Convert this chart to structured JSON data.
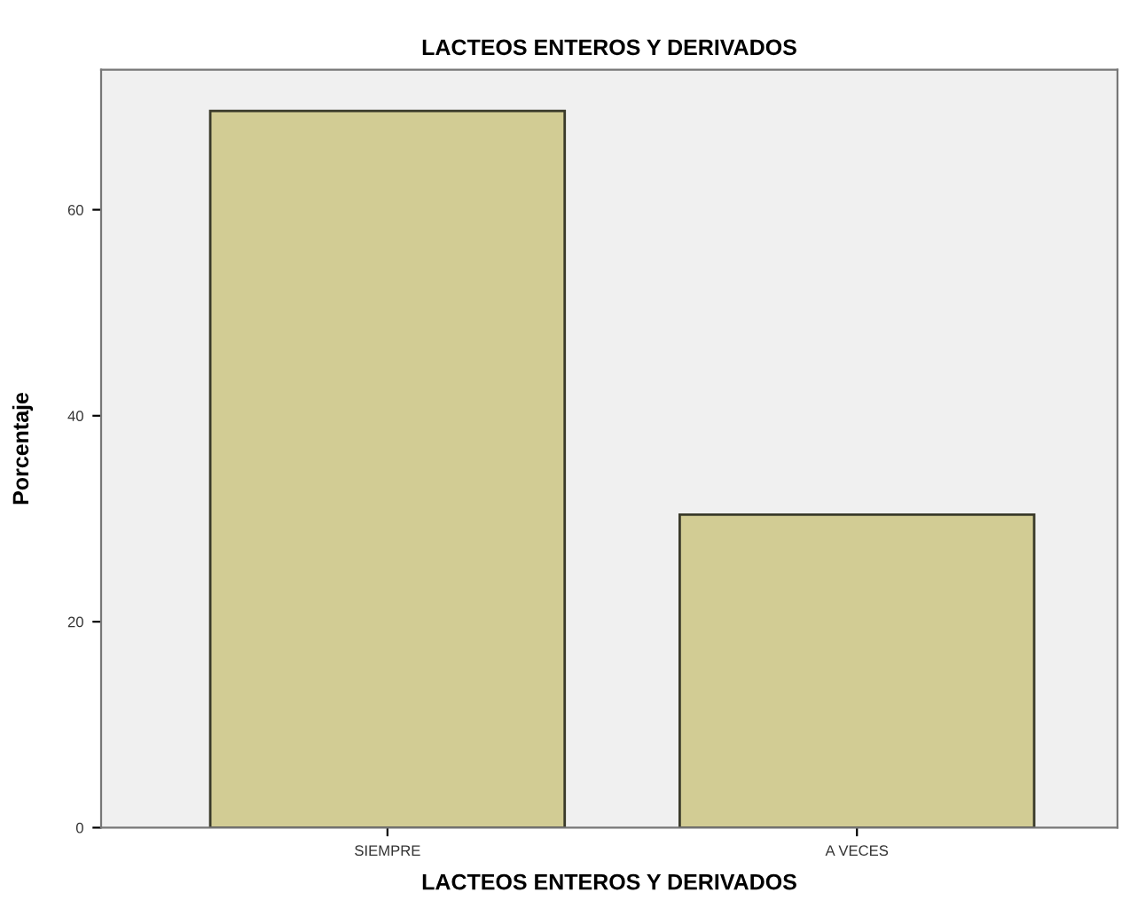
{
  "chart_data": {
    "type": "bar",
    "title": "LACTEOS ENTEROS Y DERIVADOS",
    "xlabel": "LACTEOS ENTEROS Y DERIVADOS",
    "ylabel": "Porcentaje",
    "categories": [
      "SIEMPRE",
      "A VECES"
    ],
    "values": [
      69.6,
      30.4
    ],
    "color": "#d2cc94",
    "ylim": [
      0,
      73.6
    ],
    "yticks": [
      0,
      20,
      40,
      60
    ],
    "grid": false,
    "legend": false
  }
}
